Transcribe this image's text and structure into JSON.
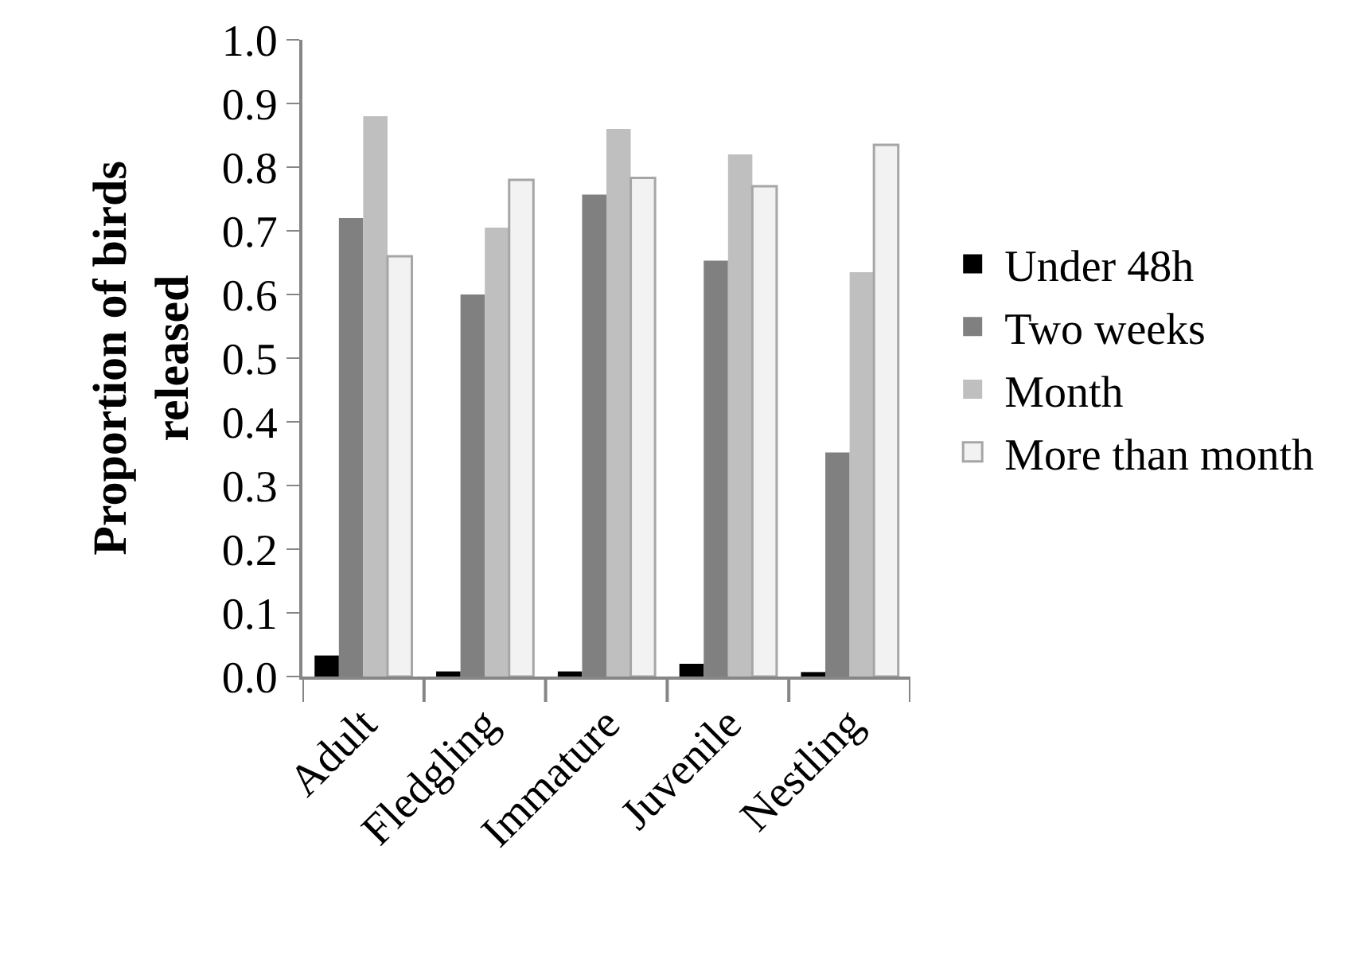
{
  "chart_data": {
    "type": "bar",
    "ylabel": "Proportion of birds\nreleased",
    "categories": [
      "Adult",
      "Fledgling",
      "Immature",
      "Juvenile",
      "Nestling"
    ],
    "series": [
      {
        "name": "Under 48h",
        "color": "#000000",
        "values": [
          0.033,
          0.008,
          0.008,
          0.02,
          0.007
        ]
      },
      {
        "name": "Two weeks",
        "color": "#808080",
        "values": [
          0.72,
          0.6,
          0.757,
          0.653,
          0.352
        ]
      },
      {
        "name": "Month",
        "color": "#bfbfbf",
        "values": [
          0.88,
          0.705,
          0.86,
          0.82,
          0.635
        ]
      },
      {
        "name": "More than month",
        "color": "#f2f2f2",
        "values": [
          0.66,
          0.78,
          0.783,
          0.77,
          0.835
        ]
      }
    ],
    "ylim": [
      0,
      1
    ],
    "yticks": [
      {
        "value": 0,
        "label": "0.0"
      },
      {
        "value": 0.1,
        "label": "0.1"
      },
      {
        "value": 0.2,
        "label": "0.2"
      },
      {
        "value": 0.3,
        "label": "0.3"
      },
      {
        "value": 0.4,
        "label": "0.4"
      },
      {
        "value": 0.5,
        "label": "0.5"
      },
      {
        "value": 0.6,
        "label": "0.6"
      },
      {
        "value": 0.7,
        "label": "0.7"
      },
      {
        "value": 0.8,
        "label": "0.8"
      },
      {
        "value": 0.9,
        "label": "0.9"
      },
      {
        "value": 1,
        "label": "1.0"
      }
    ],
    "grid": false,
    "legend": "right"
  }
}
